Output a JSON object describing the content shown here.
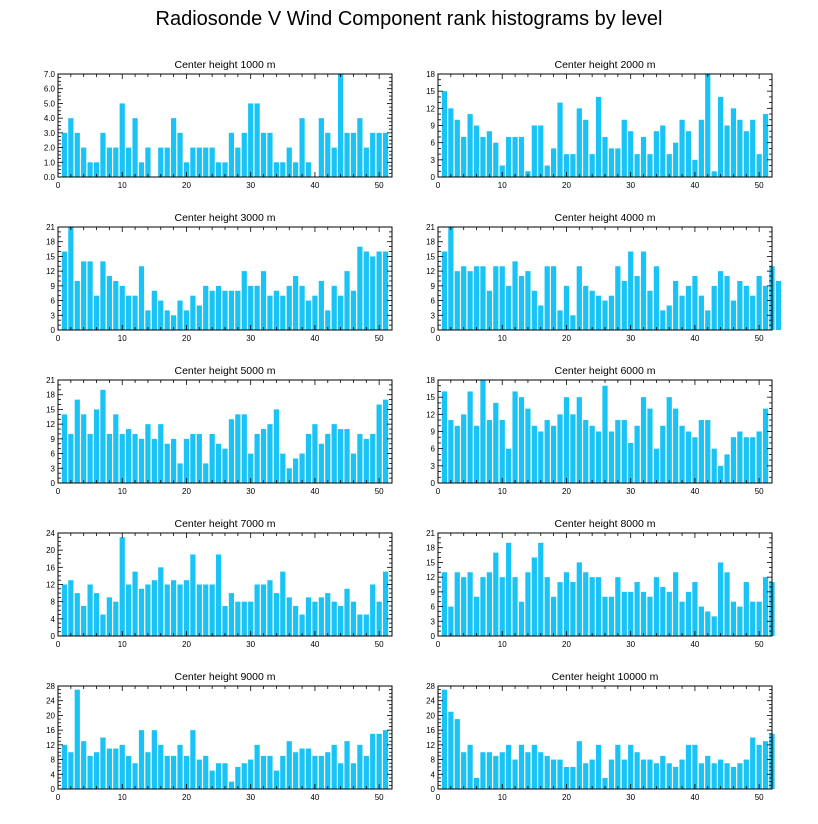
{
  "title": "Radiosonde V Wind Component rank histograms by level",
  "chart_data": [
    {
      "type": "bar",
      "title": "Center height 1000 m",
      "ylim": [
        0,
        7.0
      ],
      "yticks": [
        0,
        1,
        2,
        3,
        4,
        5,
        6,
        7
      ],
      "ytick_labels": [
        "0.0",
        "1.0",
        "2.0",
        "3.0",
        "4.0",
        "5.0",
        "6.0",
        "7.0"
      ],
      "xlim": [
        0,
        52
      ],
      "xticks": [
        0,
        10,
        20,
        30,
        40,
        50
      ],
      "values": [
        3,
        4,
        3,
        2,
        1,
        1,
        3,
        2,
        2,
        5,
        2,
        4,
        1,
        2,
        0,
        2,
        2,
        4,
        3,
        1,
        2,
        2,
        2,
        2,
        1,
        1,
        3,
        2,
        3,
        5,
        5,
        3,
        3,
        1,
        1,
        2,
        1,
        4,
        1,
        0,
        4,
        3,
        2,
        7,
        3,
        3,
        4,
        2,
        3,
        3,
        3
      ]
    },
    {
      "type": "bar",
      "title": "Center height 2000 m",
      "ylim": [
        0,
        18
      ],
      "yticks": [
        0,
        3,
        6,
        9,
        12,
        15,
        18
      ],
      "ytick_labels": [
        "0",
        "3",
        "6",
        "9",
        "12",
        "15",
        "18"
      ],
      "xlim": [
        0,
        52
      ],
      "xticks": [
        0,
        10,
        20,
        30,
        40,
        50
      ],
      "values": [
        15,
        12,
        10,
        7,
        11,
        9,
        7,
        8,
        6,
        2,
        7,
        7,
        7,
        1,
        9,
        9,
        2,
        5,
        13,
        4,
        4,
        12,
        10,
        4,
        14,
        7,
        5,
        5,
        10,
        8,
        4,
        7,
        4,
        8,
        9,
        4,
        6,
        10,
        8,
        3,
        10,
        18,
        1,
        14,
        9,
        12,
        10,
        8,
        10,
        4,
        11
      ]
    },
    {
      "type": "bar",
      "title": "Center height 3000 m",
      "ylim": [
        0,
        21
      ],
      "yticks": [
        0,
        3,
        6,
        9,
        12,
        15,
        18,
        21
      ],
      "ytick_labels": [
        "0",
        "3",
        "6",
        "9",
        "12",
        "15",
        "18",
        "21"
      ],
      "xlim": [
        0,
        52
      ],
      "xticks": [
        0,
        10,
        20,
        30,
        40,
        50
      ],
      "values": [
        16,
        21,
        10,
        14,
        14,
        7,
        14,
        11,
        10,
        9,
        7,
        7,
        13,
        4,
        8,
        6,
        4,
        3,
        6,
        4,
        7,
        5,
        9,
        8,
        9,
        8,
        8,
        8,
        12,
        9,
        9,
        12,
        7,
        8,
        7,
        9,
        11,
        9,
        6,
        7,
        10,
        4,
        9,
        7,
        12,
        8,
        17,
        16,
        15,
        16,
        16
      ]
    },
    {
      "type": "bar",
      "title": "Center height 4000 m",
      "ylim": [
        0,
        21
      ],
      "yticks": [
        0,
        3,
        6,
        9,
        12,
        15,
        18,
        21
      ],
      "ytick_labels": [
        "0",
        "3",
        "6",
        "9",
        "12",
        "15",
        "18",
        "21"
      ],
      "xlim": [
        0,
        52
      ],
      "xticks": [
        0,
        10,
        20,
        30,
        40,
        50
      ],
      "values": [
        16,
        21,
        12,
        13,
        12,
        13,
        13,
        8,
        13,
        13,
        9,
        14,
        11,
        12,
        8,
        5,
        13,
        13,
        4,
        9,
        3,
        13,
        9,
        8,
        7,
        6,
        7,
        13,
        10,
        16,
        11,
        16,
        8,
        13,
        4,
        5,
        10,
        7,
        9,
        11,
        7,
        4,
        9,
        12,
        11,
        6,
        10,
        9,
        7,
        11,
        9,
        13,
        10
      ]
    },
    {
      "type": "bar",
      "title": "Center height 5000 m",
      "ylim": [
        0,
        21
      ],
      "yticks": [
        0,
        3,
        6,
        9,
        12,
        15,
        18,
        21
      ],
      "ytick_labels": [
        "0",
        "3",
        "6",
        "9",
        "12",
        "15",
        "18",
        "21"
      ],
      "xlim": [
        0,
        52
      ],
      "xticks": [
        0,
        10,
        20,
        30,
        40,
        50
      ],
      "values": [
        14,
        10,
        17,
        14,
        10,
        15,
        19,
        10,
        14,
        10,
        11,
        10,
        9,
        12,
        9,
        12,
        8,
        9,
        4,
        9,
        10,
        10,
        4,
        10,
        8,
        7,
        13,
        14,
        14,
        6,
        10,
        11,
        12,
        15,
        6,
        3,
        5,
        6,
        10,
        12,
        8,
        10,
        12,
        11,
        11,
        6,
        10,
        9,
        10,
        16,
        17
      ]
    },
    {
      "type": "bar",
      "title": "Center height 6000 m",
      "ylim": [
        0,
        18
      ],
      "yticks": [
        0,
        3,
        6,
        9,
        12,
        15,
        18
      ],
      "ytick_labels": [
        "0",
        "3",
        "6",
        "9",
        "12",
        "15",
        "18"
      ],
      "xlim": [
        0,
        52
      ],
      "xticks": [
        0,
        10,
        20,
        30,
        40,
        50
      ],
      "values": [
        16,
        11,
        10,
        12,
        16,
        10,
        18,
        11,
        14,
        11,
        6,
        16,
        15,
        13,
        10,
        9,
        11,
        10,
        12,
        15,
        12,
        15,
        11,
        10,
        9,
        17,
        9,
        11,
        11,
        7,
        10,
        15,
        13,
        6,
        10,
        15,
        13,
        10,
        9,
        8,
        11,
        11,
        6,
        3,
        5,
        8,
        9,
        8,
        8,
        9,
        13
      ]
    },
    {
      "type": "bar",
      "title": "Center height 7000 m",
      "ylim": [
        0,
        24
      ],
      "yticks": [
        0,
        4,
        8,
        12,
        16,
        20,
        24
      ],
      "ytick_labels": [
        "0",
        "4",
        "8",
        "12",
        "16",
        "20",
        "24"
      ],
      "xlim": [
        0,
        52
      ],
      "xticks": [
        0,
        10,
        20,
        30,
        40,
        50
      ],
      "values": [
        12,
        13,
        10,
        7,
        12,
        10,
        5,
        9,
        8,
        23,
        12,
        15,
        11,
        12,
        13,
        16,
        12,
        13,
        12,
        13,
        19,
        12,
        12,
        12,
        19,
        7,
        10,
        8,
        8,
        8,
        12,
        12,
        13,
        10,
        15,
        9,
        7,
        5,
        9,
        8,
        9,
        10,
        8,
        7,
        11,
        8,
        5,
        5,
        12,
        8,
        15
      ]
    },
    {
      "type": "bar",
      "title": "Center height 8000 m",
      "ylim": [
        0,
        21
      ],
      "yticks": [
        0,
        3,
        6,
        9,
        12,
        15,
        18,
        21
      ],
      "ytick_labels": [
        "0",
        "3",
        "6",
        "9",
        "12",
        "15",
        "18",
        "21"
      ],
      "xlim": [
        0,
        52
      ],
      "xticks": [
        0,
        10,
        20,
        30,
        40,
        50
      ],
      "values": [
        13,
        6,
        13,
        12,
        13,
        8,
        12,
        13,
        17,
        12,
        19,
        12,
        7,
        13,
        16,
        19,
        12,
        8,
        11,
        13,
        11,
        15,
        13,
        12,
        12,
        8,
        8,
        12,
        9,
        9,
        11,
        9,
        8,
        12,
        10,
        9,
        13,
        7,
        9,
        11,
        6,
        5,
        4,
        15,
        13,
        7,
        6,
        11,
        7,
        7,
        12,
        11
      ]
    },
    {
      "type": "bar",
      "title": "Center height 9000 m",
      "ylim": [
        0,
        28
      ],
      "yticks": [
        0,
        4,
        8,
        12,
        16,
        20,
        24,
        28
      ],
      "ytick_labels": [
        "0",
        "4",
        "8",
        "12",
        "16",
        "20",
        "24",
        "28"
      ],
      "xlim": [
        0,
        52
      ],
      "xticks": [
        0,
        10,
        20,
        30,
        40,
        50
      ],
      "values": [
        12,
        10,
        27,
        13,
        9,
        10,
        14,
        11,
        11,
        12,
        9,
        7,
        16,
        10,
        16,
        12,
        9,
        9,
        12,
        9,
        16,
        8,
        9,
        5,
        7,
        7,
        2,
        6,
        7,
        8,
        12,
        9,
        9,
        5,
        9,
        13,
        10,
        11,
        11,
        9,
        9,
        10,
        12,
        7,
        13,
        7,
        12,
        9,
        15,
        15,
        16
      ]
    },
    {
      "type": "bar",
      "title": "Center height 10000 m",
      "ylim": [
        0,
        28
      ],
      "yticks": [
        0,
        4,
        8,
        12,
        16,
        20,
        24,
        28
      ],
      "ytick_labels": [
        "0",
        "4",
        "8",
        "12",
        "16",
        "20",
        "24",
        "28"
      ],
      "xlim": [
        0,
        52
      ],
      "xticks": [
        0,
        10,
        20,
        30,
        40,
        50
      ],
      "values": [
        27,
        21,
        19,
        10,
        12,
        3,
        10,
        10,
        9,
        10,
        12,
        8,
        12,
        10,
        12,
        10,
        9,
        8,
        8,
        6,
        6,
        13,
        7,
        8,
        12,
        3,
        8,
        12,
        8,
        12,
        10,
        8,
        8,
        7,
        9,
        7,
        6,
        8,
        12,
        12,
        7,
        9,
        7,
        8,
        7,
        6,
        7,
        8,
        14,
        12,
        13,
        15
      ]
    }
  ]
}
